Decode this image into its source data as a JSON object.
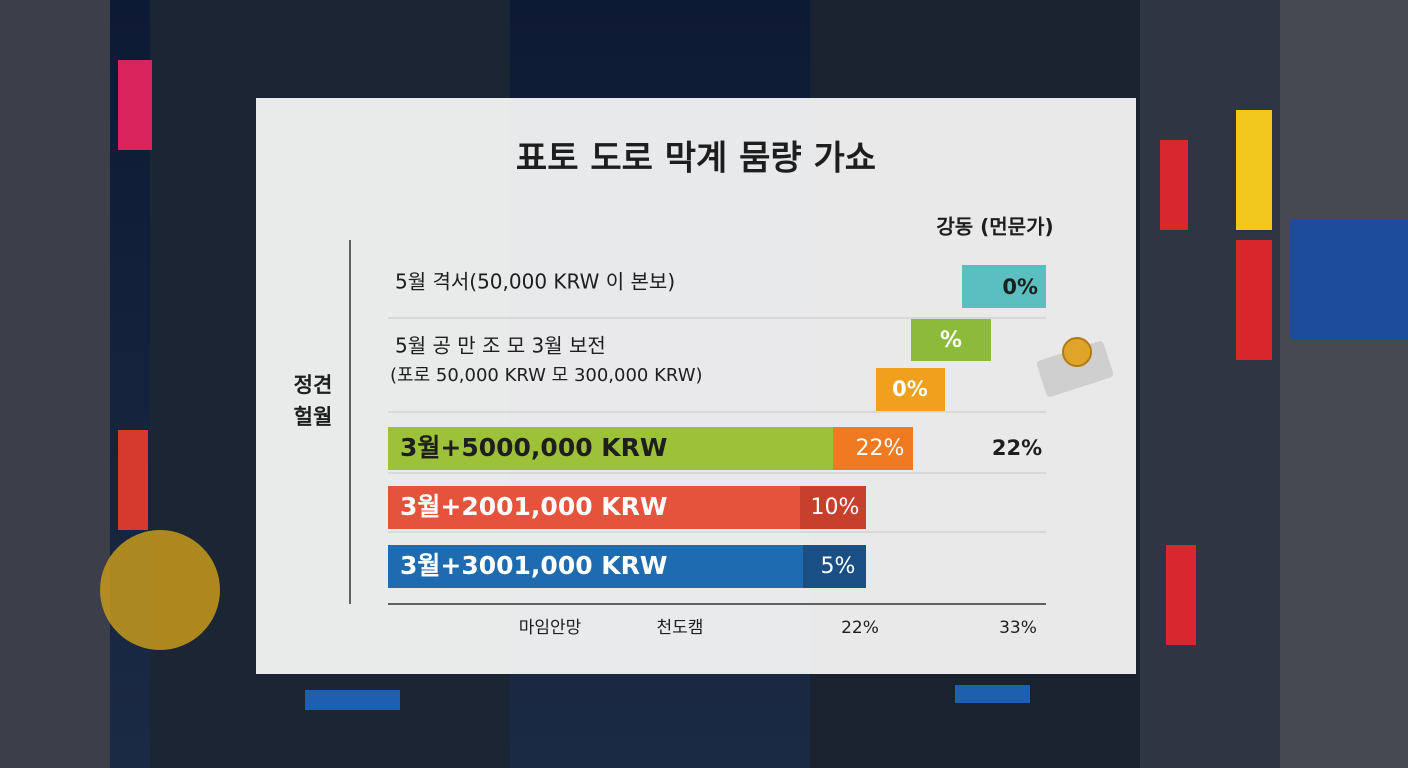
{
  "title": "표토 도로 막계 뭄량 가쇼",
  "column_header": "강동 (먼문가)",
  "side_label": [
    "정견",
    "헐월"
  ],
  "rows": [
    {
      "lines": [
        "5월 격서(50,000 KRW 이 본보)"
      ],
      "badges": [
        "0%"
      ]
    },
    {
      "lines": [
        "5월 공 만 조 모 3월 보전",
        "(포로 50,000 KRW 모 300,000 KRW)"
      ],
      "badges": [
        "%",
        "0%"
      ]
    }
  ],
  "bars": [
    {
      "label": "3월+5000,000 KRW",
      "badge": "22%",
      "side": "22%"
    },
    {
      "label": "3월+2001,000 KRW",
      "badge": "10%"
    },
    {
      "label": "3월+3001,000 KRW",
      "badge": "5%"
    }
  ],
  "footer": [
    "마임안망",
    "천도캠",
    "22%",
    "33%"
  ]
}
